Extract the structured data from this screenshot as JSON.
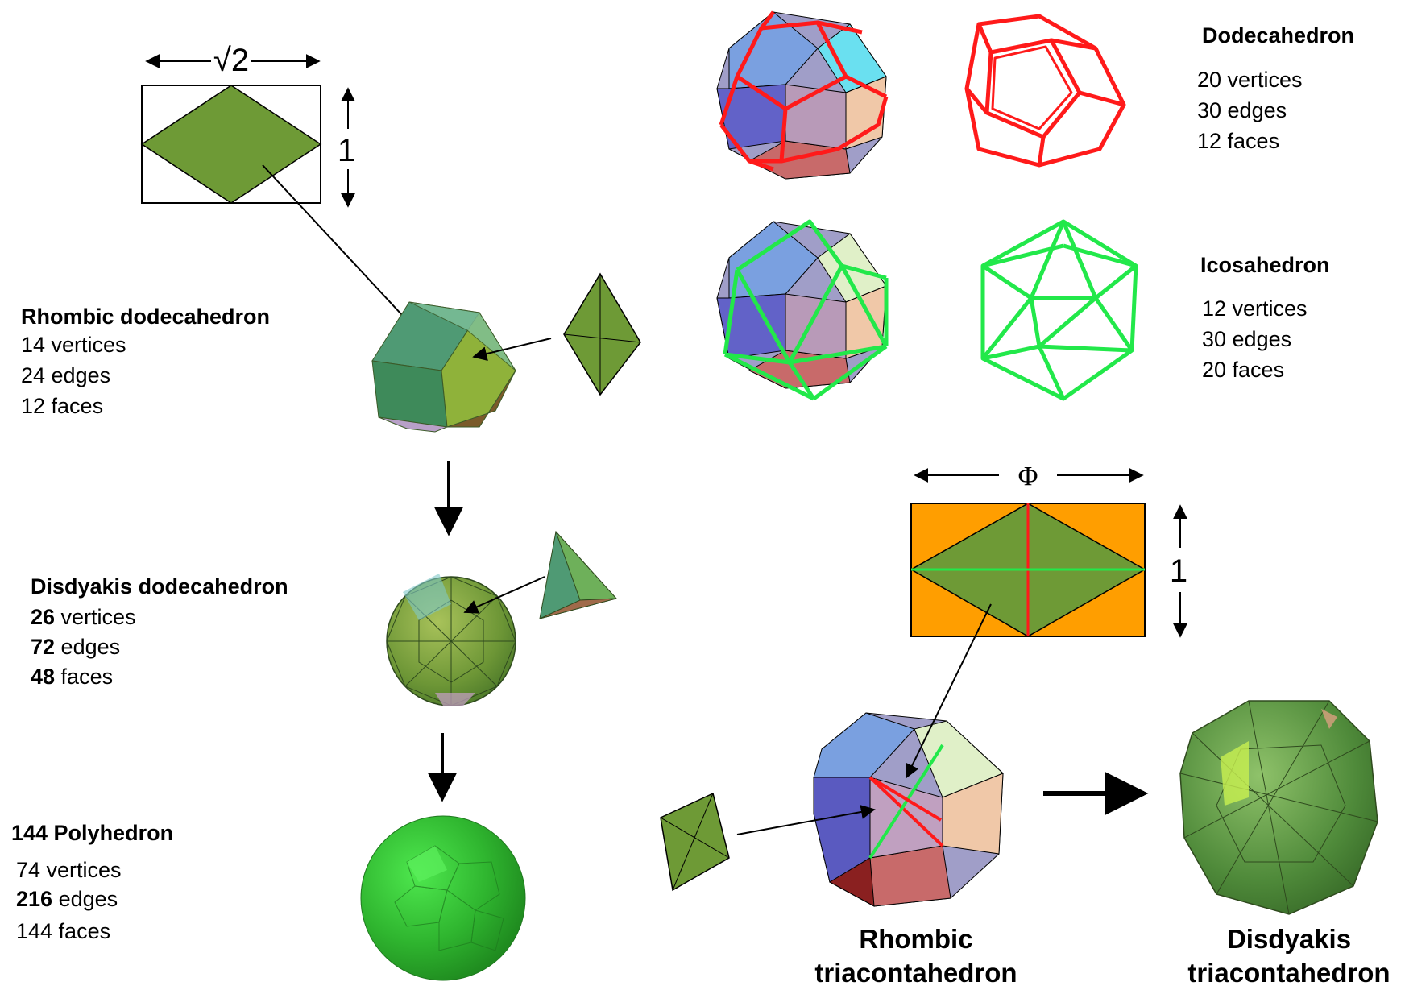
{
  "rhombus": {
    "width_label": "√2",
    "height_label": "1"
  },
  "golden_rhombus": {
    "width_label": "Φ",
    "height_label": "1"
  },
  "rhombic_dodecahedron": {
    "title": "Rhombic dodecahedron",
    "vertices": "14 vertices",
    "edges": "24 edges",
    "faces": "12 faces"
  },
  "disdyakis_dodecahedron": {
    "title": "Disdyakis dodecahedron",
    "vertices_num": "26",
    "vertices_word": " vertices",
    "edges_num": "72",
    "edges_word": " edges",
    "faces_num": "48",
    "faces_word": " faces"
  },
  "polyhedron_144": {
    "title": "144 Polyhedron",
    "vertices": "74 vertices",
    "edges_num": "216",
    "edges_word": " edges",
    "faces": "144 faces"
  },
  "dodecahedron": {
    "title": "Dodecahedron",
    "vertices": "20 vertices",
    "edges": "30 edges",
    "faces": "12 faces"
  },
  "icosahedron": {
    "title": "Icosahedron",
    "vertices": "12 vertices",
    "edges": "30 edges",
    "faces": "20 faces"
  },
  "rhombic_triacontahedron": {
    "title_line1": "Rhombic",
    "title_line2": "triacontahedron"
  },
  "disdyakis_triacontahedron": {
    "title_line1": "Disdyakis",
    "title_line2": "triacontahedron"
  },
  "colors": {
    "rhombus_green": "#6e9a36",
    "golden_bg": "#ff9e00",
    "dodeca_red": "#ff1a1a",
    "icosa_green": "#22e84a",
    "poly144_green": "#2fb52f"
  }
}
